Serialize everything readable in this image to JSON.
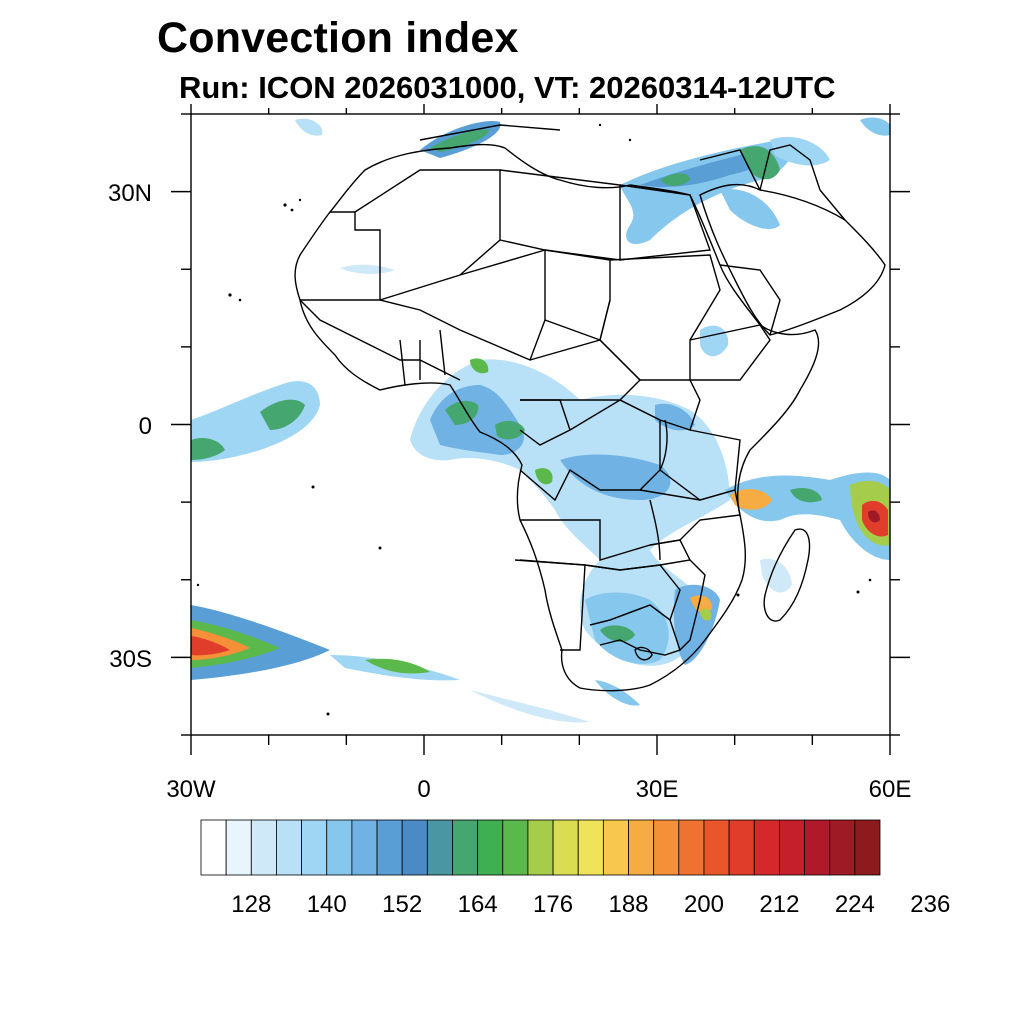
{
  "title": "Convection index",
  "subtitle": "Run: ICON 2026031000,  VT: 20260314-12UTC",
  "map": {
    "extent_lon": [
      -30,
      60
    ],
    "extent_lat": [
      -40,
      40
    ],
    "lat_labels": [
      {
        "value": 30,
        "text": "30N"
      },
      {
        "value": 0,
        "text": "0"
      },
      {
        "value": -30,
        "text": "30S"
      }
    ],
    "lon_labels": [
      {
        "value": -30,
        "text": "30W"
      },
      {
        "value": 0,
        "text": "0"
      },
      {
        "value": 30,
        "text": "30E"
      },
      {
        "value": 60,
        "text": "60E"
      }
    ]
  },
  "colorbar": {
    "colors": [
      "#ffffff",
      "#e8f5fc",
      "#cfe9f8",
      "#b8e0f6",
      "#9fd6f3",
      "#86c7ed",
      "#6fb2e3",
      "#5a9ed6",
      "#4a8bc5",
      "#4a97a3",
      "#46a66f",
      "#3fb052",
      "#5bb84b",
      "#a5cc4a",
      "#d9dd4f",
      "#efe35a",
      "#f7c84d",
      "#f6ab43",
      "#f59039",
      "#ef7330",
      "#e8562a",
      "#e03d2a",
      "#d5282b",
      "#c51f2b",
      "#b0192a",
      "#9e1a25",
      "#8e1a1e"
    ],
    "labels": [
      "128",
      "140",
      "152",
      "164",
      "176",
      "188",
      "200",
      "212",
      "224",
      "236"
    ]
  }
}
